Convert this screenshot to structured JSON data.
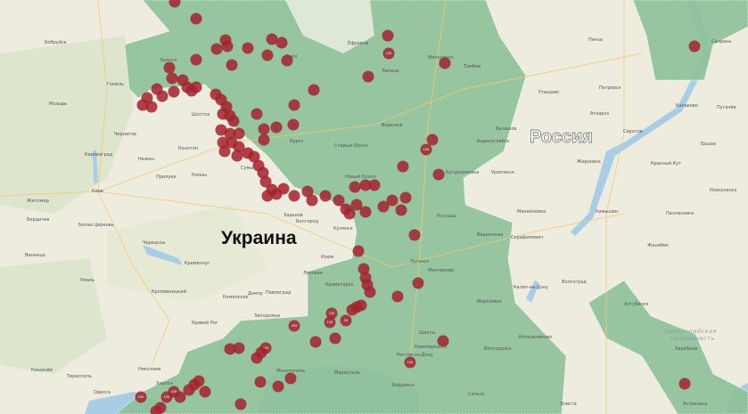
{
  "map": {
    "countries": [
      {
        "id": "ukraine",
        "label": "Украина"
      },
      {
        "id": "russia",
        "label": "Россия"
      }
    ],
    "region_label": "Прикаспийская низменность",
    "colors": {
      "land": "#eeecdf",
      "highlighted_region": "#8fc29a",
      "marker": "#a3222e",
      "water": "#a9cde4",
      "road": "#f3c979"
    },
    "cities": [
      "Бобруйск",
      "Гомель",
      "Мозырь",
      "Чернигов",
      "Нежин",
      "Киев",
      "Житомир",
      "Бердичев",
      "Белая Церковь",
      "Черкассы",
      "Винница",
      "Кременчуг",
      "Кропивницкий",
      "Днепр",
      "Павлоград",
      "Кривой Рог",
      "Николаев",
      "Одесса",
      "Херсон",
      "Запорожье",
      "Мелитополь",
      "Мариуполь",
      "Бердянск",
      "Харьков",
      "Сумы",
      "Конотоп",
      "Прилуки",
      "Ромны",
      "Шостка",
      "Брянск",
      "Курск",
      "Орёл",
      "Белгород",
      "Старый Оскол",
      "Новый Оскол",
      "Воронеж",
      "Липецк",
      "Тамбов",
      "Мичуринск",
      "Борисоглебск",
      "Ефремов",
      "Пенза",
      "Саратов",
      "Сызрань",
      "Балаково",
      "Камышин",
      "Волгоград",
      "Элиста",
      "Астрахань",
      "Ростов-на-Дону",
      "Новочеркасск",
      "Шахты",
      "Миллерово",
      "Краматорск",
      "Купянск",
      "Изюм",
      "Лозовая",
      "Каменское",
      "Кировоград",
      "Умань",
      "Тирасполь",
      "Кишинёв",
      "Луганск",
      "Пугачёв",
      "Ершов",
      "Новоузенск",
      "Красный Кут",
      "Жирновск",
      "Петровск",
      "Аткарск",
      "Ртищево",
      "Балашов",
      "Урюпинск",
      "Михайловка",
      "Серафимович",
      "Котельниково",
      "Калач-на-Дону",
      "Палласовка",
      "Жанибек",
      "Харабали",
      "Ахтубинск",
      "Сальск",
      "Волгодонск",
      "Морозовск",
      "Вёшенская",
      "Бутурлиновка",
      "Россошь"
    ]
  }
}
